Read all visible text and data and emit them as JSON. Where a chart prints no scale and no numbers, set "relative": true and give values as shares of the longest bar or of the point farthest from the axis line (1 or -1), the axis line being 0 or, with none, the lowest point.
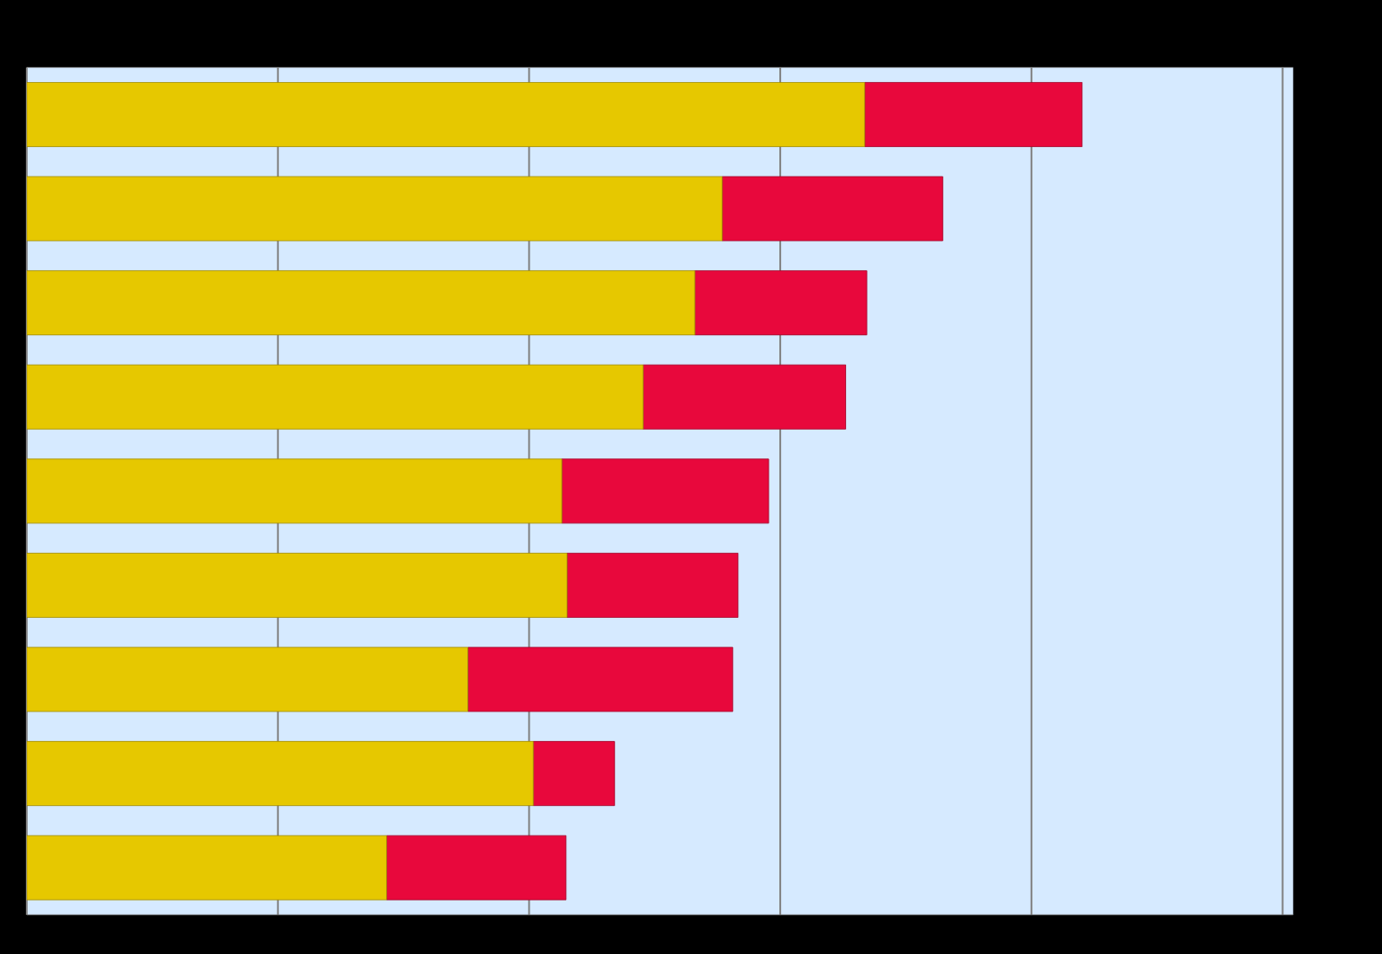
{
  "chart_data": {
    "type": "bar",
    "orientation": "horizontal",
    "stacked": true,
    "relative": true,
    "grid": "x",
    "categories": [
      null,
      null,
      null,
      null,
      null,
      null,
      null,
      null,
      null
    ],
    "series": [
      {
        "color": "#e6c800",
        "values": [
          0.794,
          0.659,
          0.633,
          0.584,
          0.507,
          0.512,
          0.418,
          0.48,
          0.341
        ]
      },
      {
        "color": "#e8083c",
        "values": [
          0.206,
          0.209,
          0.163,
          0.192,
          0.196,
          0.162,
          0.251,
          0.077,
          0.17
        ]
      }
    ]
  }
}
